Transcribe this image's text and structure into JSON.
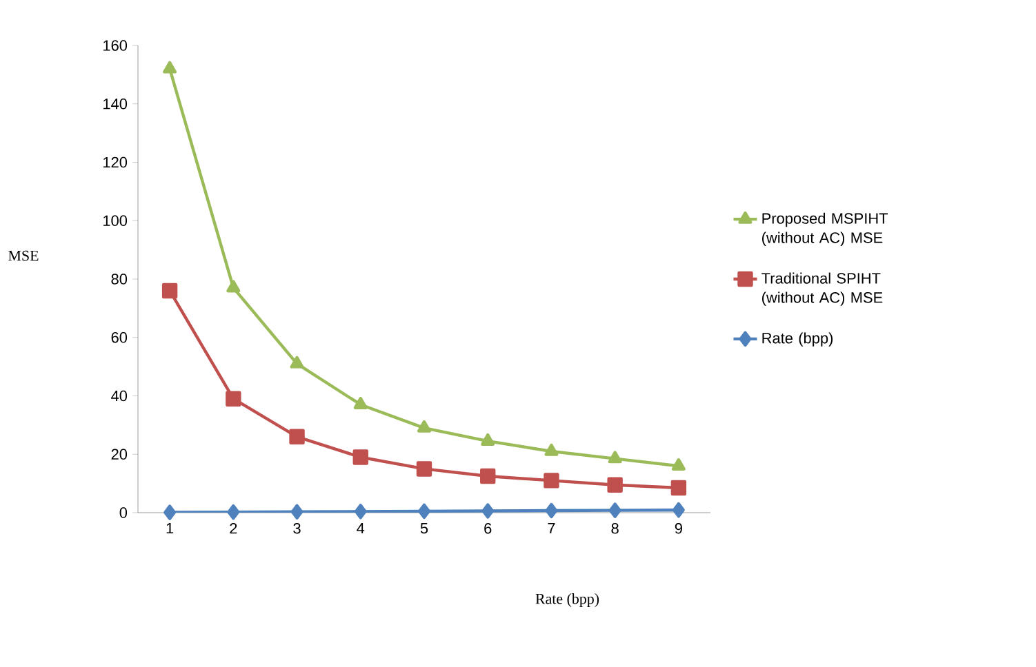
{
  "chart_data": {
    "type": "line",
    "xlabel": "Rate (bpp)",
    "ylabel": "MSE",
    "categories": [
      "1",
      "2",
      "3",
      "4",
      "5",
      "6",
      "7",
      "8",
      "9"
    ],
    "ylim": [
      0,
      160
    ],
    "yticks": [
      0,
      20,
      40,
      60,
      80,
      100,
      120,
      140,
      160
    ],
    "grid": false,
    "legend": "right",
    "series": [
      {
        "name": "Proposed MSPIHT (without AC) MSE",
        "color": "#9bbb59",
        "marker": "triangle",
        "values": [
          152,
          77,
          51,
          37,
          29,
          24.5,
          21,
          18.5,
          16
        ]
      },
      {
        "name": "Traditional SPIHT (without AC) MSE",
        "color": "#c0504d",
        "marker": "square",
        "values": [
          76,
          39,
          26,
          19,
          15,
          12.5,
          11,
          9.5,
          8.5
        ]
      },
      {
        "name": "Rate (bpp)",
        "color": "#4f81bd",
        "marker": "diamond",
        "values": [
          0.1,
          0.2,
          0.3,
          0.4,
          0.5,
          0.6,
          0.7,
          0.8,
          0.9
        ]
      }
    ]
  }
}
